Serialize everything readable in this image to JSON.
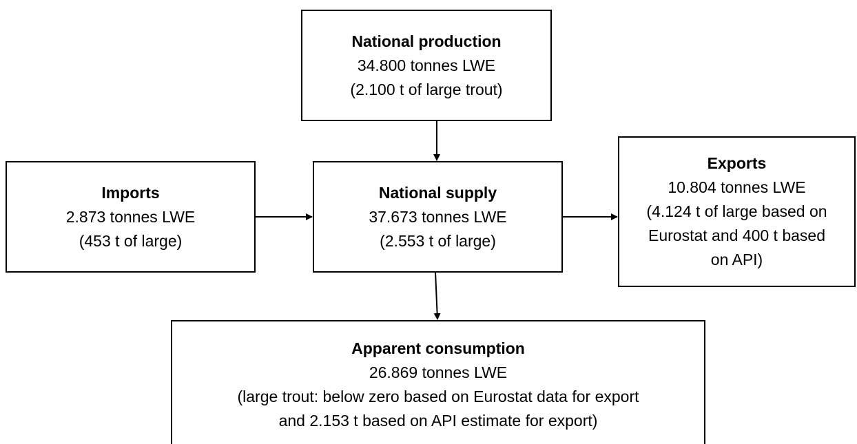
{
  "nodes": [
    {
      "title": "National production",
      "lines": [
        "34.800 tonnes LWE",
        "(2.100 t of large trout)"
      ]
    },
    {
      "title": "Imports",
      "lines": [
        "2.873 tonnes LWE",
        "(453 t of large)"
      ]
    },
    {
      "title": "National supply",
      "lines": [
        "37.673 tonnes LWE",
        "(2.553 t of large)"
      ]
    },
    {
      "title": "Exports",
      "lines": [
        "10.804 tonnes LWE",
        "(4.124 t of large based on",
        "Eurostat and 400 t based",
        "on API)"
      ]
    },
    {
      "title": "Apparent consumption",
      "lines": [
        "26.869 tonnes LWE",
        "(large trout: below zero based on Eurostat data for export",
        "and 2.153 t based on API estimate for export)"
      ]
    }
  ]
}
